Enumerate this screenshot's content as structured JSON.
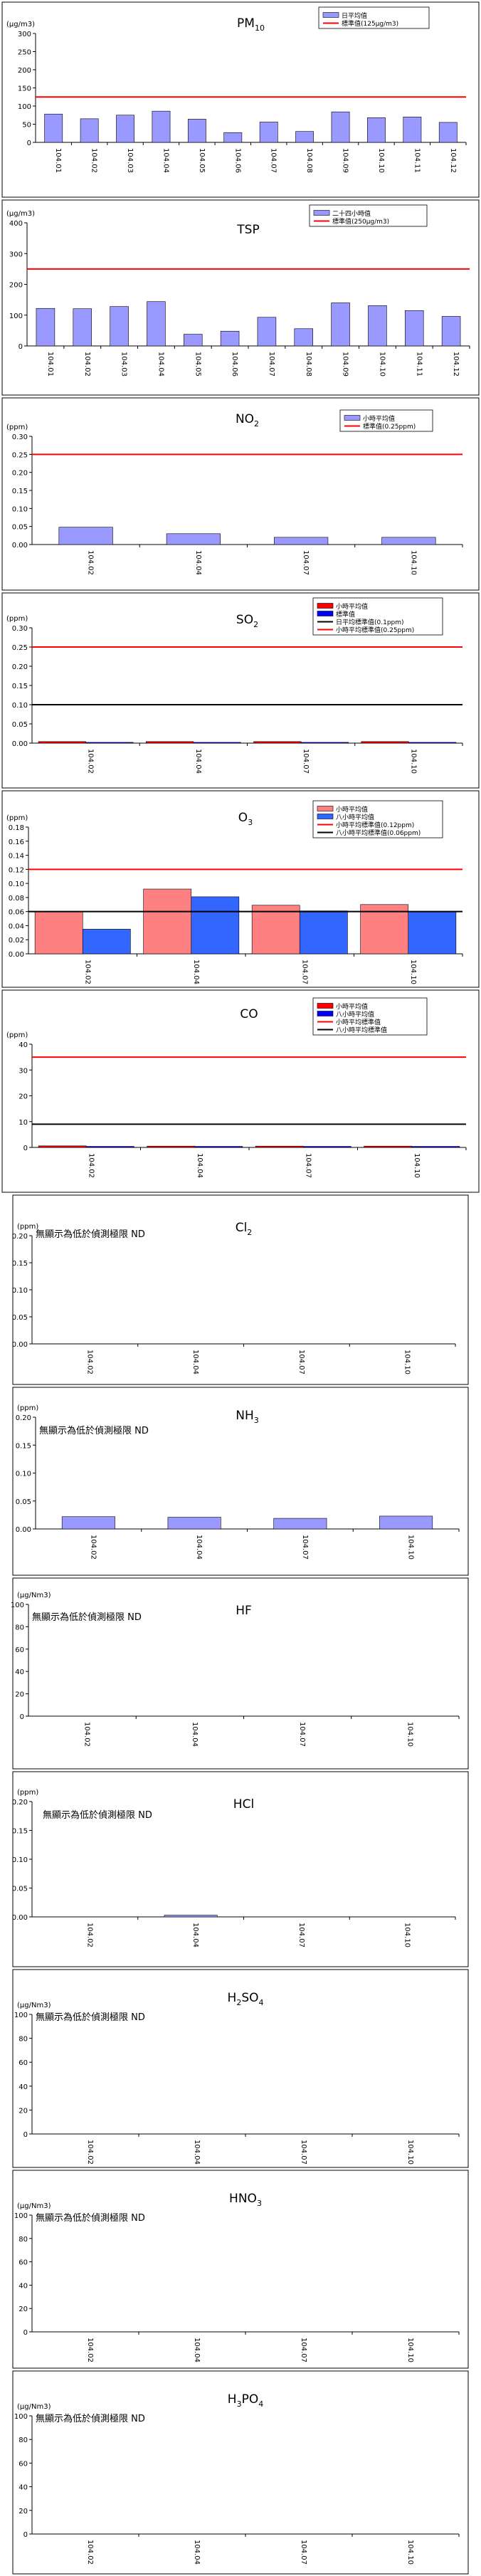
{
  "chart_data": [
    {
      "type": "bar",
      "title": "PM",
      "title_sub": "10",
      "unit": "(μg/m3)",
      "categories": [
        "104.01",
        "104.02",
        "104.03",
        "104.04",
        "104.05",
        "104.06",
        "104.07",
        "104.08",
        "104.09",
        "104.10",
        "104.11",
        "104.12"
      ],
      "series": [
        {
          "name": "日平均值",
          "values": [
            78,
            65,
            75,
            86,
            64,
            27,
            56,
            30,
            84,
            68,
            70,
            55
          ],
          "color": "#9999ff"
        }
      ],
      "lines": [
        {
          "name": "標準值(125μg/m3)",
          "value": 125,
          "color": "#ff0000"
        }
      ],
      "ylim": [
        0,
        300
      ],
      "yticks": [
        0,
        50,
        100,
        150,
        200,
        250,
        300
      ],
      "tick_decimals": 0
    },
    {
      "type": "bar",
      "title": "TSP",
      "title_sub": "",
      "unit": "(μg/m3)",
      "categories": [
        "104.01",
        "104.02",
        "104.03",
        "104.04",
        "104.05",
        "104.06",
        "104.07",
        "104.08",
        "104.09",
        "104.10",
        "104.11",
        "104.12"
      ],
      "series": [
        {
          "name": "二十四小時值",
          "values": [
            122,
            121,
            128,
            144,
            38,
            48,
            93,
            56,
            140,
            131,
            115,
            96
          ],
          "color": "#9999ff"
        }
      ],
      "lines": [
        {
          "name": "標準值(250μg/m3)",
          "value": 250,
          "color": "#ff0000"
        }
      ],
      "ylim": [
        0,
        400
      ],
      "yticks": [
        0,
        100,
        200,
        300,
        400
      ],
      "tick_decimals": 0
    },
    {
      "type": "bar",
      "title": "NO",
      "title_sub": "2",
      "unit": "(ppm)",
      "categories": [
        "104.02",
        "104.04",
        "104.07",
        "104.10"
      ],
      "series": [
        {
          "name": "小時平均值",
          "values": [
            0.048,
            0.03,
            0.02,
            0.02
          ],
          "color": "#9999ff"
        }
      ],
      "lines": [
        {
          "name": "標準值(0.25ppm)",
          "value": 0.25,
          "color": "#ff0000"
        }
      ],
      "ylim": [
        0,
        0.3
      ],
      "yticks": [
        0,
        0.05,
        0.1,
        0.15,
        0.2,
        0.25,
        0.3
      ],
      "tick_decimals": 2
    },
    {
      "type": "bar",
      "title": "SO",
      "title_sub": "2",
      "unit": "(ppm)",
      "categories": [
        "104.02",
        "104.04",
        "104.07",
        "104.10"
      ],
      "series": [
        {
          "name": "小時平均值",
          "values": [
            0.004,
            0.004,
            0.004,
            0.004
          ],
          "color": "#ff0000"
        },
        {
          "name": "標準值",
          "values": [
            0.002,
            0.002,
            0.002,
            0.002
          ],
          "color": "#0000ff"
        }
      ],
      "lines": [
        {
          "name": "日平均標準值(0.1ppm)",
          "value": 0.1,
          "color": "#000000"
        },
        {
          "name": "小時平均標準值(0.25ppm)",
          "value": 0.25,
          "color": "#ff0000"
        }
      ],
      "ylim": [
        0,
        0.3
      ],
      "yticks": [
        0,
        0.05,
        0.1,
        0.15,
        0.2,
        0.25,
        0.3
      ],
      "tick_decimals": 2
    },
    {
      "type": "bar",
      "title": "O",
      "title_sub": "3",
      "unit": "(ppm)",
      "categories": [
        "104.02",
        "104.04",
        "104.07",
        "104.10"
      ],
      "series": [
        {
          "name": "小時平均值",
          "values": [
            0.06,
            0.092,
            0.069,
            0.07
          ],
          "color": "#ff8080"
        },
        {
          "name": "八小時平均值",
          "values": [
            0.035,
            0.081,
            0.061,
            0.06
          ],
          "color": "#3366ff"
        }
      ],
      "lines": [
        {
          "name": "小時平均標準值(0.12ppm)",
          "value": 0.12,
          "color": "#ff0000"
        },
        {
          "name": "八小時平均標準值(0.06ppm)",
          "value": 0.06,
          "color": "#000000"
        }
      ],
      "ylim": [
        0,
        0.18
      ],
      "yticks": [
        0,
        0.02,
        0.04,
        0.06,
        0.08,
        0.1,
        0.12,
        0.14,
        0.16,
        0.18
      ],
      "tick_decimals": 2
    },
    {
      "type": "bar",
      "title": "CO",
      "title_sub": "",
      "unit": "(ppm)",
      "categories": [
        "104.02",
        "104.04",
        "104.07",
        "104.10"
      ],
      "series": [
        {
          "name": "小時平均值",
          "values": [
            0.6,
            0.5,
            0.5,
            0.5
          ],
          "color": "#ff0000"
        },
        {
          "name": "八小時平均值",
          "values": [
            0.4,
            0.4,
            0.4,
            0.4
          ],
          "color": "#0000ff"
        }
      ],
      "lines": [
        {
          "name": "小時平均標準值",
          "value": 35,
          "color": "#ff0000"
        },
        {
          "name": "八小時平均標準值",
          "value": 9,
          "color": "#000000"
        }
      ],
      "ylim": [
        0,
        40
      ],
      "yticks": [
        0,
        10,
        20,
        30,
        40
      ],
      "tick_decimals": 0
    },
    {
      "type": "bar",
      "title": "Cl",
      "title_sub": "2",
      "unit": "(ppm)",
      "note": "無顯示為低於偵測極限 ND",
      "categories": [
        "104.02",
        "104.04",
        "104.07",
        "104.10"
      ],
      "series": [
        {
          "name": "",
          "values": [
            0,
            0,
            0,
            0
          ],
          "color": "#9999ff"
        }
      ],
      "lines": [],
      "ylim": [
        0,
        0.2
      ],
      "yticks": [
        0,
        0.05,
        0.1,
        0.15,
        0.2
      ],
      "tick_decimals": 2
    },
    {
      "type": "bar",
      "title": "NH",
      "title_sub": "3",
      "unit": "(ppm)",
      "note": "無顯示為低於偵測極限 ND",
      "categories": [
        "104.02",
        "104.04",
        "104.07",
        "104.10"
      ],
      "series": [
        {
          "name": "",
          "values": [
            0.022,
            0.021,
            0.019,
            0.023
          ],
          "color": "#9999ff"
        }
      ],
      "lines": [],
      "ylim": [
        0,
        0.2
      ],
      "yticks": [
        0,
        0.05,
        0.1,
        0.15,
        0.2
      ],
      "tick_decimals": 2
    },
    {
      "type": "bar",
      "title": "HF",
      "title_sub": "",
      "unit": "(μg/Nm3)",
      "note": "無顯示為低於偵測極限 ND",
      "categories": [
        "104.02",
        "104.04",
        "104.07",
        "104.10"
      ],
      "series": [
        {
          "name": "",
          "values": [
            0,
            0,
            0,
            0
          ],
          "color": "#9999ff"
        }
      ],
      "lines": [],
      "ylim": [
        0,
        100
      ],
      "yticks": [
        0,
        20,
        40,
        60,
        80,
        100
      ],
      "tick_decimals": 0
    },
    {
      "type": "bar",
      "title": "HCl",
      "title_sub": "",
      "unit": "(ppm)",
      "note": "無顯示為低於偵測極限 ND",
      "categories": [
        "104.02",
        "104.04",
        "104.07",
        "104.10"
      ],
      "series": [
        {
          "name": "",
          "values": [
            0,
            0.003,
            0,
            0
          ],
          "color": "#9999ff"
        }
      ],
      "lines": [],
      "ylim": [
        0,
        0.2
      ],
      "yticks": [
        0,
        0.05,
        0.1,
        0.15,
        0.2
      ],
      "tick_decimals": 2
    },
    {
      "type": "bar",
      "title": "H",
      "title_sub": "2",
      "title_tail": "SO",
      "title_sub2": "4",
      "unit": "(μg/Nm3)",
      "note": "無顯示為低於偵測極限 ND",
      "categories": [
        "104.02",
        "104.04",
        "104.07",
        "104.10"
      ],
      "series": [
        {
          "name": "",
          "values": [
            0,
            0,
            0,
            0
          ],
          "color": "#9999ff"
        }
      ],
      "lines": [],
      "ylim": [
        0,
        100
      ],
      "yticks": [
        0,
        20,
        40,
        60,
        80,
        100
      ],
      "tick_decimals": 0
    },
    {
      "type": "bar",
      "title": "HNO",
      "title_sub": "3",
      "unit": "(μg/Nm3)",
      "note": "無顯示為低於偵測極限 ND",
      "categories": [
        "104.02",
        "104.04",
        "104.07",
        "104.10"
      ],
      "series": [
        {
          "name": "",
          "values": [
            0,
            0,
            0,
            0
          ],
          "color": "#9999ff"
        }
      ],
      "lines": [],
      "ylim": [
        0,
        100
      ],
      "yticks": [
        0,
        20,
        40,
        60,
        80,
        100
      ],
      "tick_decimals": 0
    },
    {
      "type": "bar",
      "title": "H",
      "title_sub": "3",
      "title_tail": "PO",
      "title_sub2": "4",
      "unit": "(μg/Nm3)",
      "note": "無顯示為低於偵測極限 ND",
      "categories": [
        "104.02",
        "104.04",
        "104.07",
        "104.10"
      ],
      "series": [
        {
          "name": "",
          "values": [
            0,
            0,
            0,
            0
          ],
          "color": "#9999ff"
        }
      ],
      "lines": [],
      "ylim": [
        0,
        100
      ],
      "yticks": [
        0,
        20,
        40,
        60,
        80,
        100
      ],
      "tick_decimals": 0
    }
  ]
}
